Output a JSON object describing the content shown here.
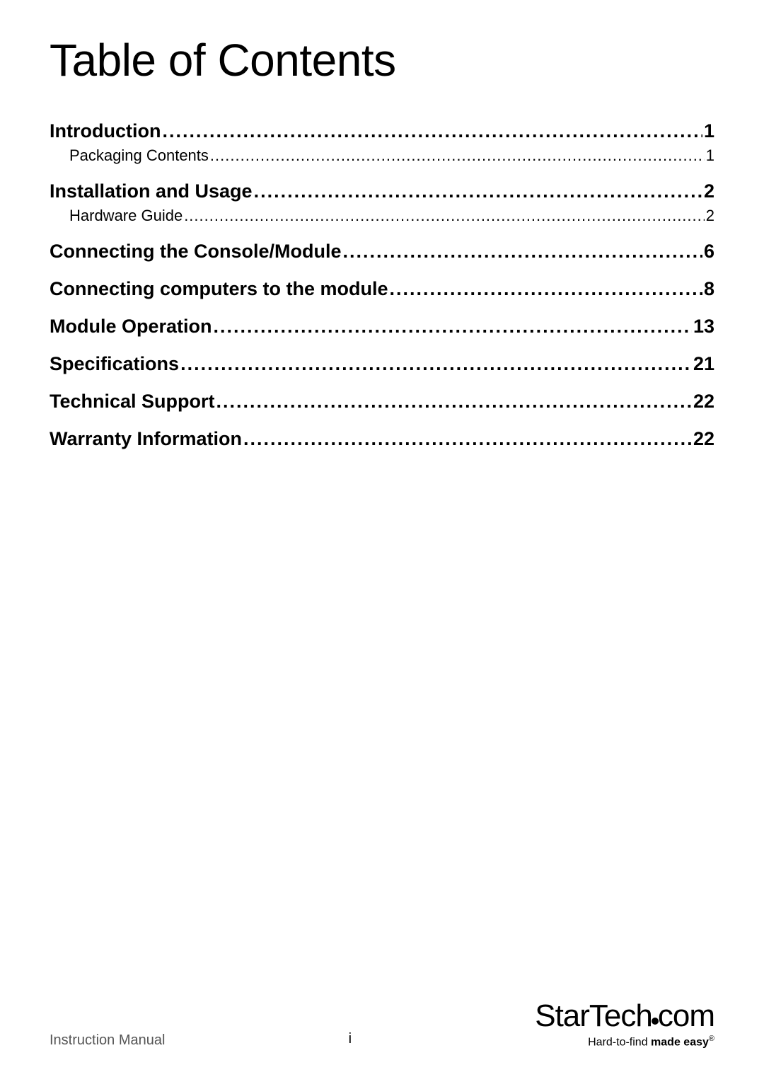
{
  "title": "Table of Contents",
  "toc": [
    {
      "level": "section",
      "label": "Introduction",
      "page": "1"
    },
    {
      "level": "sub",
      "label": "Packaging Contents",
      "page": "1"
    },
    {
      "level": "section",
      "label": "Installation and Usage",
      "page": "2"
    },
    {
      "level": "sub",
      "label": "Hardware Guide",
      "page": "2"
    },
    {
      "level": "section",
      "label": "Connecting the Console/Module",
      "page": "6"
    },
    {
      "level": "section",
      "label": "Connecting computers to the module",
      "page": "8"
    },
    {
      "level": "section",
      "label": "Module Operation",
      "page": "13"
    },
    {
      "level": "section",
      "label": "Specifications",
      "page": "21"
    },
    {
      "level": "section",
      "label": "Technical Support",
      "page": "22"
    },
    {
      "level": "section",
      "label": "Warranty Information",
      "page": "22"
    }
  ],
  "footer": {
    "left": "Instruction Manual",
    "page_number": "i",
    "brand_1": "StarTech",
    "brand_2": "com",
    "tagline_1": "Hard-to-find ",
    "tagline_2": "made easy",
    "tagline_reg": "®"
  },
  "colors": {
    "background": "#ffffff",
    "text": "#000000",
    "footer_left": "#555555"
  }
}
